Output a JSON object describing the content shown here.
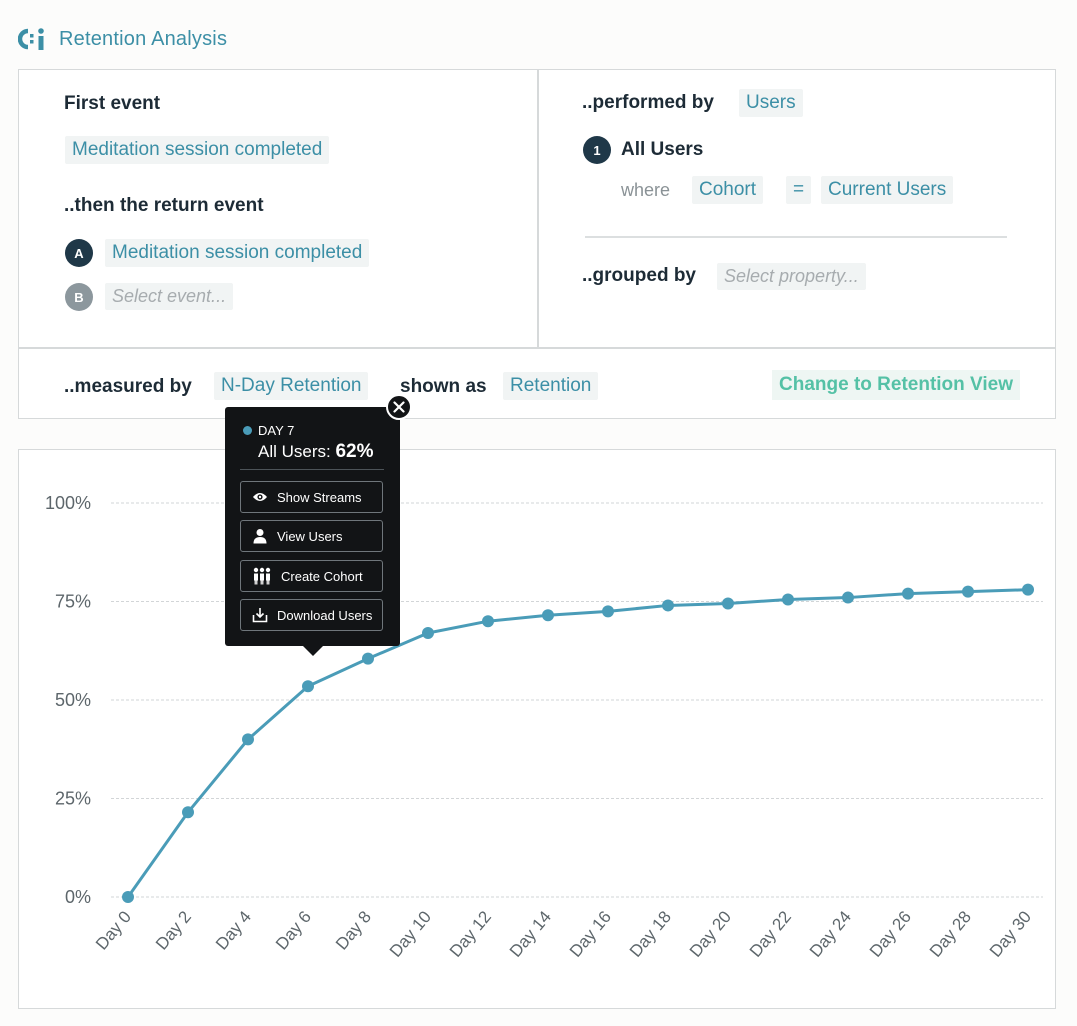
{
  "app": {
    "title": "Retention Analysis",
    "logo_icon": "analytics-logo-icon"
  },
  "query": {
    "first_event_label": "First event",
    "first_event_value": "Meditation session completed",
    "return_event_label": "..then the return event",
    "return_events": [
      {
        "badge": "A",
        "value": "Meditation session completed"
      },
      {
        "badge": "B",
        "placeholder": "Select event..."
      }
    ],
    "performed_by_label": "..performed by",
    "performed_by_value": "Users",
    "segment": {
      "badge": "1",
      "name": "All Users",
      "where_label": "where",
      "property": "Cohort",
      "operator": "=",
      "value": "Current Users"
    },
    "grouped_by_label": "..grouped by",
    "grouped_by_placeholder": "Select property...",
    "measured_by_label": "..measured by",
    "measured_by_value": "N-Day Retention",
    "shown_as_label": "shown as",
    "shown_as_value": "Retention",
    "change_view_label": "Change to Retention View"
  },
  "tooltip": {
    "day_label": "DAY 7",
    "series_label": "All Users:",
    "value": "62%",
    "actions": [
      {
        "label": "Show Streams",
        "icon": "eye-icon"
      },
      {
        "label": "View Users",
        "icon": "user-icon"
      },
      {
        "label": "Create Cohort",
        "icon": "group-icon"
      },
      {
        "label": "Download Users",
        "icon": "download-icon"
      }
    ]
  },
  "colors": {
    "line": "#4a9cb8",
    "accent": "#3c8fa6",
    "cta": "#55c1a6",
    "tooltip_bg": "#121416"
  },
  "chart_data": {
    "type": "line",
    "title": "",
    "xlabel": "",
    "ylabel": "",
    "ylim": [
      0,
      100
    ],
    "yticks": [
      "0%",
      "25%",
      "50%",
      "75%",
      "100%"
    ],
    "ytick_values": [
      0,
      25,
      50,
      75,
      100
    ],
    "categories": [
      "Day 0",
      "Day 2",
      "Day 4",
      "Day 6",
      "Day 8",
      "Day 10",
      "Day 12",
      "Day 14",
      "Day 16",
      "Day 18",
      "Day 20",
      "Day 22",
      "Day 24",
      "Day 26",
      "Day 28",
      "Day 30"
    ],
    "series": [
      {
        "name": "All Users",
        "values": [
          0,
          21.5,
          40,
          53.5,
          60.5,
          67,
          70,
          71.5,
          72.5,
          74,
          74.5,
          75.5,
          76,
          77,
          77.5,
          78
        ]
      }
    ],
    "grid": true,
    "legend": "none"
  }
}
